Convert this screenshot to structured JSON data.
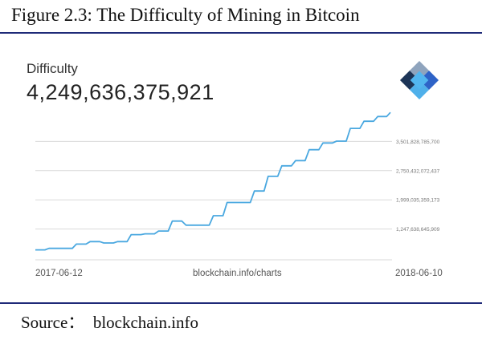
{
  "figure_title": "Figure 2.3: The Difficulty of Mining in Bitcoin",
  "metric": {
    "label": "Difficulty",
    "value": "4,249,636,375,921"
  },
  "logo_icon": "blockchain-logo-icon",
  "x_axis": {
    "start": "2017-06-12",
    "center": "blockchain.info/charts",
    "end": "2018-06-10"
  },
  "source": "Source：  blockchain.info",
  "colors": {
    "line": "#4aa8e0",
    "rule": "#1f2a78",
    "grid": "#d9d9d9"
  },
  "chart_data": {
    "type": "line",
    "title": "Difficulty",
    "xlabel": "",
    "ylabel": "",
    "x": [
      "2017-06-12",
      "2017-06-26",
      "2017-07-10",
      "2017-07-24",
      "2017-08-07",
      "2017-08-21",
      "2017-09-04",
      "2017-09-18",
      "2017-10-02",
      "2017-10-16",
      "2017-10-30",
      "2017-11-13",
      "2017-11-27",
      "2017-12-11",
      "2017-12-25",
      "2018-01-08",
      "2018-01-22",
      "2018-02-05",
      "2018-02-19",
      "2018-03-05",
      "2018-03-19",
      "2018-04-02",
      "2018-04-16",
      "2018-04-30",
      "2018-05-14",
      "2018-05-28",
      "2018-06-10"
    ],
    "series": [
      {
        "values": [
          711000000000,
          750000000000,
          750000000000,
          860000000000,
          923000000000,
          888000000000,
          923000000000,
          1103000000000,
          1123000000000,
          1196000000000,
          1452000000000,
          1347000000000,
          1347000000000,
          1590000000000,
          1931000000000,
          1931000000000,
          2227000000000,
          2603000000000,
          2874000000000,
          3008000000000,
          3290000000000,
          3462000000000,
          3511000000000,
          3839000000000,
          4022000000000,
          4143000000000,
          4249636375921
        ]
      }
    ],
    "y_ticks": [
      {
        "value": 1247638645909,
        "label": "1,247,638,645,909"
      },
      {
        "value": 1999035359173,
        "label": "1,999,035,359,173"
      },
      {
        "value": 2750432072437,
        "label": "2,750,432,072,437"
      },
      {
        "value": 3501828785700,
        "label": "3,501,828,785,700"
      }
    ],
    "ylim": [
      496241932645,
      4253225499000
    ],
    "grid": true,
    "legend": "none"
  }
}
